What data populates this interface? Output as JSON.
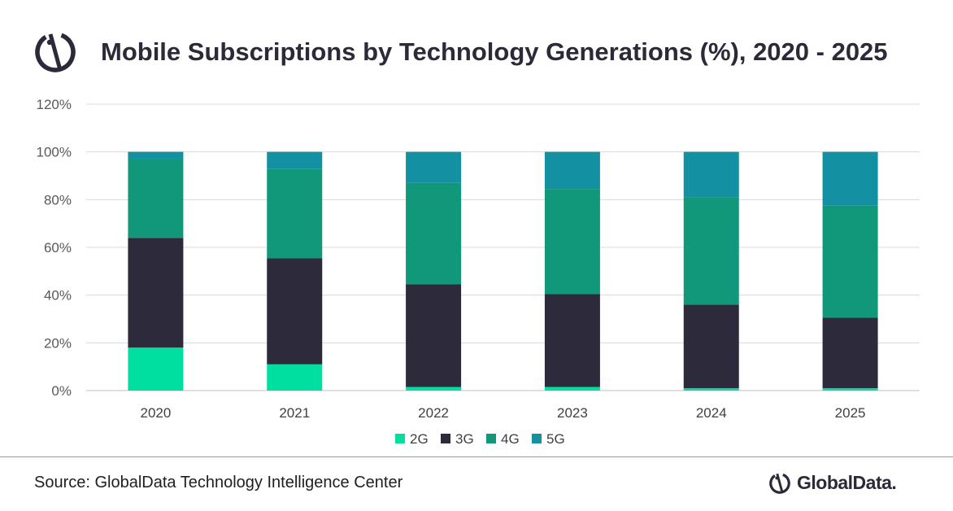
{
  "header": {
    "title": "Mobile Subscriptions by Technology Generations (%), 2020 - 2025"
  },
  "footer": {
    "source": "Source: GlobalData Technology Intelligence Center",
    "brand_name": "GlobalData."
  },
  "icons": {
    "header_logo": "globaldata-logo-icon",
    "brand_logo": "globaldata-logo-icon"
  },
  "chart_data": {
    "type": "bar",
    "stacked": true,
    "title": "Mobile Subscriptions by Technology Generations (%), 2020 - 2025",
    "xlabel": "",
    "ylabel": "",
    "categories": [
      "2020",
      "2021",
      "2022",
      "2023",
      "2024",
      "2025"
    ],
    "y_ticks": [
      "0%",
      "20%",
      "40%",
      "60%",
      "80%",
      "100%",
      "120%"
    ],
    "ylim": [
      0,
      120
    ],
    "grid": true,
    "legend_position": "bottom",
    "series": [
      {
        "name": "2G",
        "color": "#00dfa0",
        "values": [
          18,
          11,
          1.5,
          1.5,
          1,
          1
        ]
      },
      {
        "name": "3G",
        "color": "#2d2a3c",
        "values": [
          46,
          44.5,
          43,
          39,
          35,
          29.5
        ]
      },
      {
        "name": "4G",
        "color": "#11987a",
        "values": [
          33,
          37.5,
          42.5,
          44,
          45,
          47
        ]
      },
      {
        "name": "5G",
        "color": "#1390a1",
        "values": [
          3,
          7,
          13,
          15.5,
          19,
          22.5
        ]
      }
    ]
  }
}
